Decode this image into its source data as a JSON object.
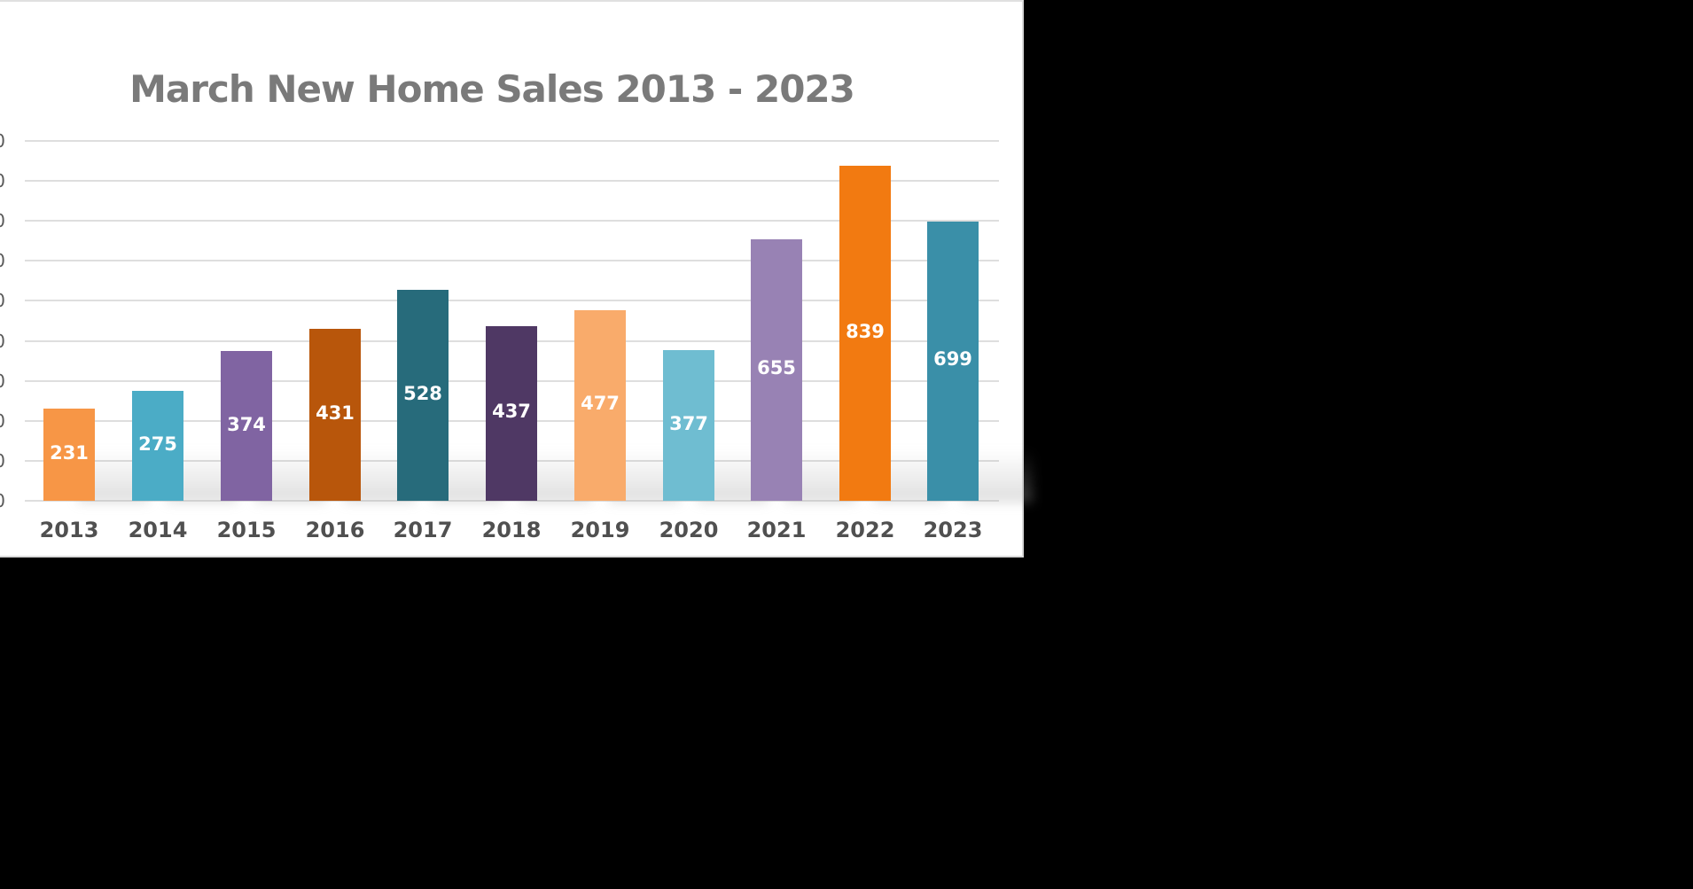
{
  "chart_data": {
    "type": "bar",
    "title": "March New Home Sales 2013 - 2023",
    "xlabel": "",
    "ylabel": "",
    "ylim": [
      0,
      900
    ],
    "grid": true,
    "legend": null,
    "categories": [
      "2013",
      "2014",
      "2015",
      "2016",
      "2017",
      "2018",
      "2019",
      "2020",
      "2021",
      "2022",
      "2023"
    ],
    "values": [
      231,
      275,
      374,
      431,
      528,
      437,
      477,
      377,
      655,
      839,
      699
    ],
    "colors": [
      "#F79646",
      "#4BACC6",
      "#8064A2",
      "#B8560B",
      "#276B7B",
      "#4F3864",
      "#F9AB6B",
      "#6FBDD1",
      "#9882B4",
      "#F27A11",
      "#3A8FA8"
    ],
    "data_labels": [
      "231",
      "275",
      "374",
      "431",
      "528",
      "437",
      "477",
      "377",
      "655",
      "839",
      "699"
    ],
    "yticks_partial": [
      "0",
      "0",
      "0",
      "0",
      "0",
      "0",
      "0",
      "0",
      "0",
      "0"
    ]
  }
}
